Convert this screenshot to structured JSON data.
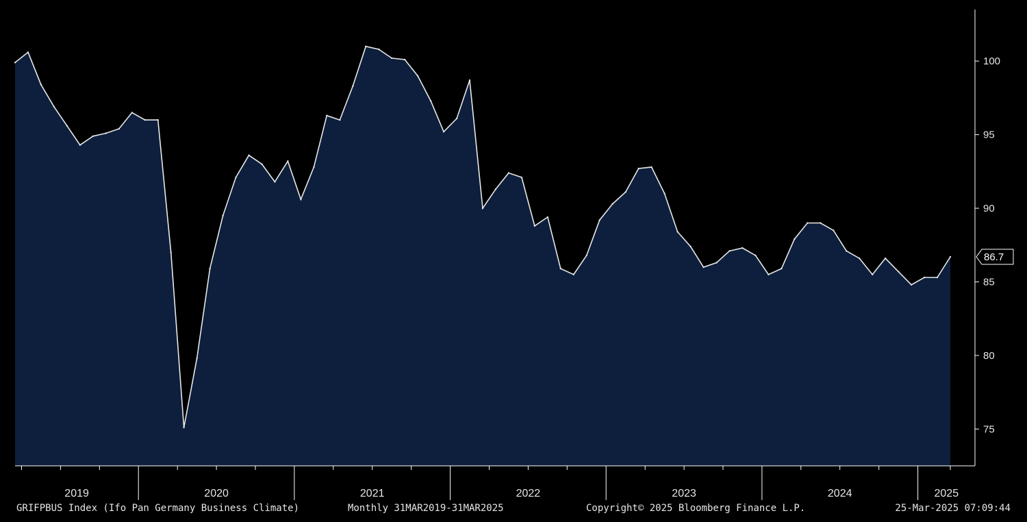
{
  "chart_data": {
    "type": "area",
    "title": "",
    "xlabel": "",
    "ylabel": "",
    "ylim": [
      72.5,
      103.5
    ],
    "yticks": [
      75,
      80,
      85,
      90,
      95,
      100
    ],
    "x_range": [
      "2019-03",
      "2025-03"
    ],
    "year_labels": [
      "2019",
      "2020",
      "2021",
      "2022",
      "2023",
      "2024",
      "2025"
    ],
    "last_value_label": "86.7",
    "grid": false,
    "colors": {
      "fill": "#0d1f3c",
      "line": "#e8e8e8",
      "background": "#000000",
      "axis": "#ffffff"
    },
    "series": [
      {
        "x": [
          "2019-03",
          "2019-04",
          "2019-05",
          "2019-06",
          "2019-07",
          "2019-08",
          "2019-09",
          "2019-10",
          "2019-11",
          "2019-12",
          "2020-01",
          "2020-02",
          "2020-03",
          "2020-04",
          "2020-05",
          "2020-06",
          "2020-07",
          "2020-08",
          "2020-09",
          "2020-10",
          "2020-11",
          "2020-12",
          "2021-01",
          "2021-02",
          "2021-03",
          "2021-04",
          "2021-05",
          "2021-06",
          "2021-07",
          "2021-08",
          "2021-09",
          "2021-10",
          "2021-11",
          "2021-12",
          "2022-01",
          "2022-02",
          "2022-03",
          "2022-04",
          "2022-05",
          "2022-06",
          "2022-07",
          "2022-08",
          "2022-09",
          "2022-10",
          "2022-11",
          "2022-12",
          "2023-01",
          "2023-02",
          "2023-03",
          "2023-04",
          "2023-05",
          "2023-06",
          "2023-07",
          "2023-08",
          "2023-09",
          "2023-10",
          "2023-11",
          "2023-12",
          "2024-01",
          "2024-02",
          "2024-03",
          "2024-04",
          "2024-05",
          "2024-06",
          "2024-07",
          "2024-08",
          "2024-09",
          "2024-10",
          "2024-11",
          "2024-12",
          "2025-01",
          "2025-02",
          "2025-03"
        ],
        "values": [
          99.9,
          100.6,
          98.4,
          96.9,
          95.6,
          94.3,
          94.9,
          95.1,
          95.4,
          96.5,
          96.0,
          96.0,
          87.0,
          75.1,
          79.8,
          85.9,
          89.5,
          92.1,
          93.6,
          93.0,
          91.8,
          93.2,
          90.6,
          92.8,
          96.3,
          96.0,
          98.3,
          101.0,
          100.8,
          100.2,
          100.1,
          99.0,
          97.3,
          95.2,
          96.1,
          98.7,
          90.0,
          91.3,
          92.4,
          92.1,
          88.8,
          89.4,
          85.9,
          85.5,
          86.8,
          89.2,
          90.3,
          91.1,
          92.7,
          92.8,
          91.0,
          88.4,
          87.4,
          86.0,
          86.3,
          87.1,
          87.3,
          86.8,
          85.5,
          85.9,
          87.9,
          89.0,
          89.0,
          88.5,
          87.1,
          86.6,
          85.5,
          86.6,
          85.7,
          84.8,
          85.3,
          85.3,
          86.7
        ]
      }
    ]
  },
  "footer": {
    "ticker": "GRIFPBUS Index (Ifo Pan Germany Business Climate)",
    "range": "Monthly 31MAR2019-31MAR2025",
    "copyright": "Copyright© 2025 Bloomberg Finance L.P.",
    "timestamp": "25-Mar-2025 07:09:44"
  }
}
